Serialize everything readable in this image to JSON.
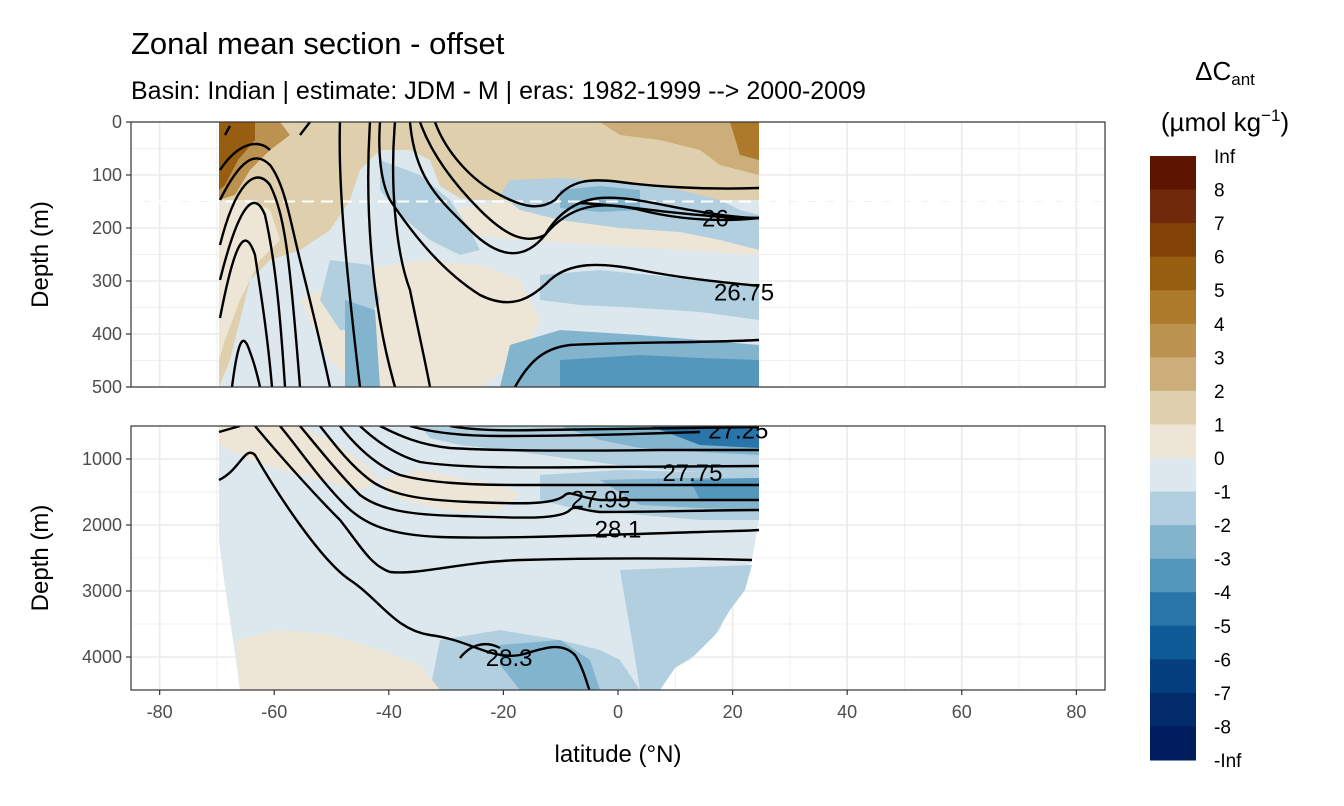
{
  "chart_data": {
    "type": "heatmap",
    "title": "Zonal mean section - offset",
    "subtitle": "Basin: Indian | estimate: JDM - M | eras: 1982-1999 --> 2000-2009",
    "xlabel": "latitude (°N)",
    "xlim": [
      -85,
      85
    ],
    "x_ticks": [
      -80,
      -60,
      -40,
      -20,
      0,
      20,
      40,
      60,
      80
    ],
    "panels": [
      {
        "name": "upper",
        "ylabel": "Depth (m)",
        "ylim": [
          0,
          500
        ],
        "y_ticks": [
          0,
          100,
          200,
          300,
          400,
          500
        ],
        "reference_depth": 150,
        "contour_labels": [
          {
            "text": "26",
            "lat": 17,
            "depth": 180
          },
          {
            "text": "26.75",
            "lat": 22,
            "depth": 320
          }
        ]
      },
      {
        "name": "lower",
        "ylabel": "Depth (m)",
        "ylim": [
          500,
          4500
        ],
        "y_ticks": [
          1000,
          2000,
          3000,
          4000
        ],
        "contour_labels": [
          {
            "text": "27.25",
            "lat": 21,
            "depth": 550
          },
          {
            "text": "27.75",
            "lat": 13,
            "depth": 1200
          },
          {
            "text": "27.95",
            "lat": -3,
            "depth": 1600
          },
          {
            "text": "28.1",
            "lat": 0,
            "depth": 2050
          },
          {
            "text": "28.3",
            "lat": -19,
            "depth": 4000
          }
        ]
      }
    ],
    "legend": {
      "title": "ΔC",
      "title_sub": "ant",
      "unit_prefix": "(µmol kg",
      "unit_sup": "−1",
      "unit_suffix": ")",
      "labels": [
        "Inf",
        "8",
        "7",
        "6",
        "5",
        "4",
        "3",
        "2",
        "1",
        "0",
        "-1",
        "-2",
        "-3",
        "-4",
        "-5",
        "-6",
        "-7",
        "-8",
        "-Inf"
      ],
      "colors": [
        "#5e1500",
        "#70290a",
        "#824207",
        "#975d10",
        "#ac7a2a",
        "#bb9250",
        "#cbae79",
        "#dfcfac",
        "#ede6d7",
        "#dce8ed",
        "#b2cfe0",
        "#83b4ce",
        "#5497bd",
        "#2974a8",
        "#0e5b98",
        "#053f80",
        "#022b6c",
        "#001d5e"
      ]
    }
  }
}
